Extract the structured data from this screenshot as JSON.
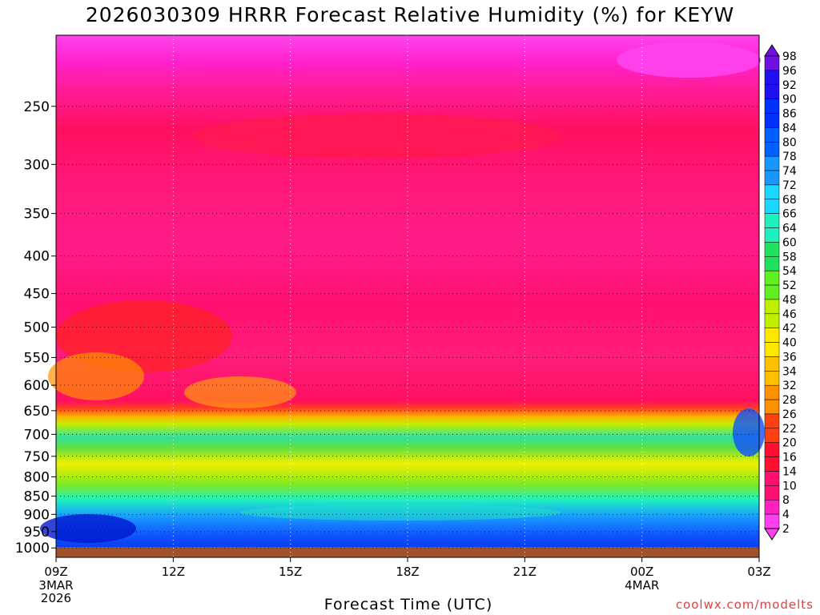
{
  "chart_data": {
    "type": "heatmap",
    "title": "2026030309 HRRR Forecast Relative Humidity (%) for KEYW",
    "xlabel": "Forecast Time (UTC)",
    "ylabel": "",
    "x_ticks": [
      {
        "label": "09Z",
        "sub": [
          "3MAR",
          "2026"
        ],
        "hour": 0
      },
      {
        "label": "12Z",
        "sub": [],
        "hour": 3
      },
      {
        "label": "15Z",
        "sub": [],
        "hour": 6
      },
      {
        "label": "18Z",
        "sub": [],
        "hour": 9
      },
      {
        "label": "21Z",
        "sub": [],
        "hour": 12
      },
      {
        "label": "00Z",
        "sub": [
          "4MAR"
        ],
        "hour": 15
      },
      {
        "label": "03Z",
        "sub": [],
        "hour": 18
      }
    ],
    "y_ticks": [
      250,
      300,
      350,
      400,
      450,
      500,
      550,
      600,
      650,
      700,
      750,
      800,
      850,
      900,
      950,
      1000
    ],
    "ylim": [
      1030,
      200
    ],
    "y_scale": "log",
    "colorbar_levels": [
      98,
      96,
      92,
      90,
      86,
      84,
      80,
      78,
      74,
      72,
      68,
      66,
      64,
      60,
      58,
      54,
      52,
      48,
      46,
      42,
      40,
      36,
      34,
      32,
      28,
      26,
      22,
      20,
      16,
      14,
      10,
      8,
      4,
      2
    ],
    "grid": true,
    "approx_rh_profile": [
      {
        "pressure": 200,
        "rh": 4
      },
      {
        "pressure": 300,
        "rh": 12
      },
      {
        "pressure": 450,
        "rh": 10
      },
      {
        "pressure": 600,
        "rh": 10
      },
      {
        "pressure": 650,
        "rh": 22
      },
      {
        "pressure": 700,
        "rh": 56
      },
      {
        "pressure": 750,
        "rh": 48
      },
      {
        "pressure": 850,
        "rh": 54
      },
      {
        "pressure": 900,
        "rh": 70
      },
      {
        "pressure": 950,
        "rh": 82
      },
      {
        "pressure": 1000,
        "rh": 86
      }
    ]
  },
  "credit": "coolwx.com/modelts"
}
